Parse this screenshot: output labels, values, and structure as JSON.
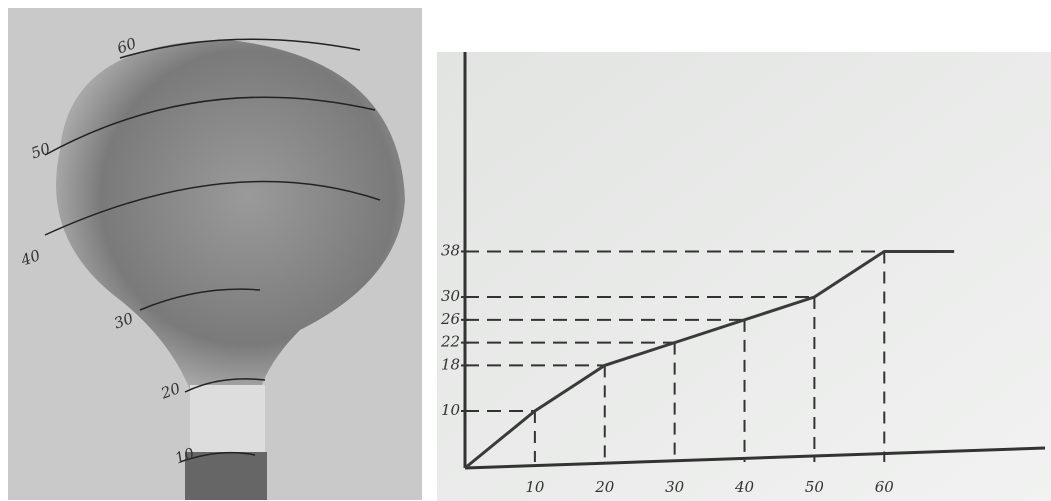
{
  "photo": {
    "labels": [
      "60",
      "50",
      "40",
      "30",
      "20",
      "10"
    ]
  },
  "chart_data": {
    "type": "line",
    "x": [
      0,
      10,
      20,
      30,
      40,
      50,
      60,
      70
    ],
    "values": [
      0,
      10,
      18,
      22,
      26,
      30,
      38,
      38
    ],
    "color": "#3a3a3a",
    "xlim": [
      0,
      83
    ],
    "ylim": [
      0,
      73
    ],
    "xticks": [
      10,
      20,
      30,
      40,
      50,
      60
    ],
    "yticks": [
      10,
      18,
      22,
      26,
      30,
      38
    ]
  }
}
